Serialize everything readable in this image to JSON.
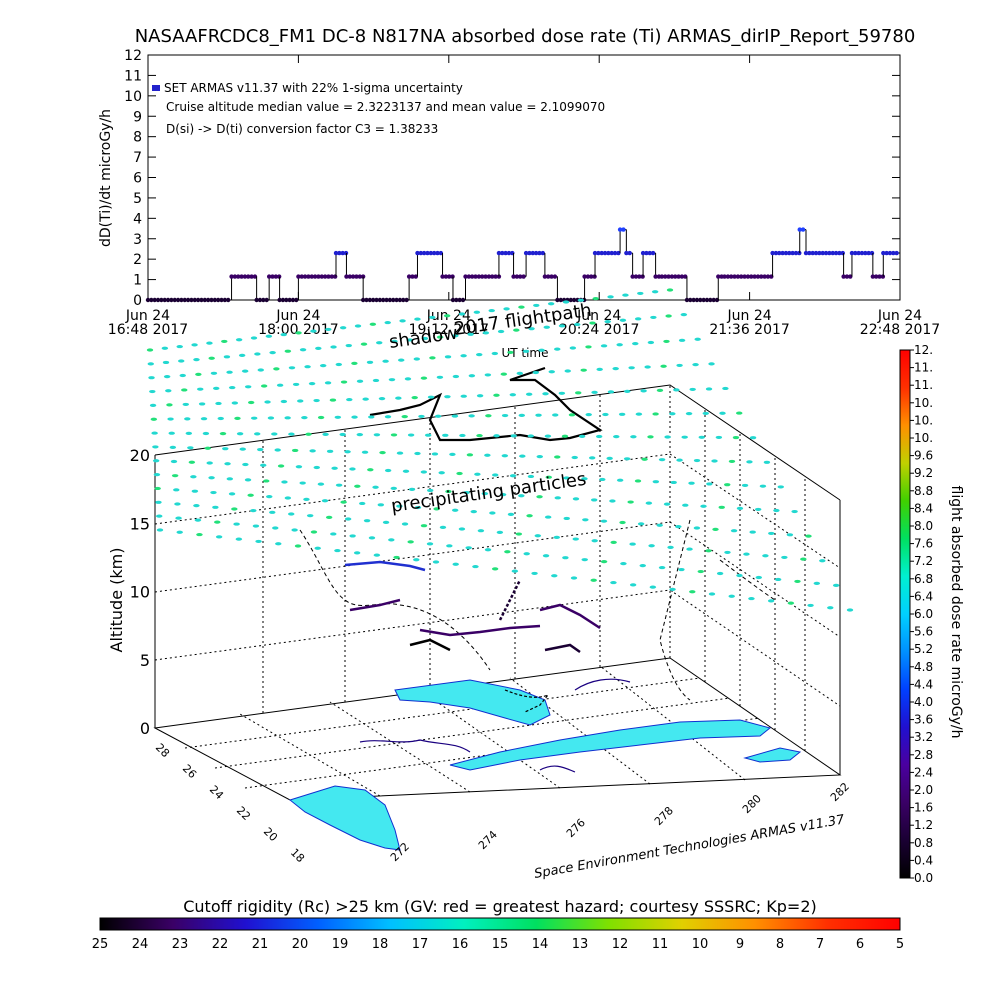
{
  "header": {
    "title": "NASAAFRCDC8_FM1 DC-8   N817NA absorbed dose rate (Ti) ARMAS_dirIP_Report_59780"
  },
  "top_plot": {
    "ylabel": "dD(Ti)/dt microGy/h",
    "xlabel": "UT time",
    "y_ticks": [
      "0",
      "1",
      "2",
      "3",
      "4",
      "5",
      "6",
      "7",
      "8",
      "9",
      "10",
      "11",
      "12"
    ],
    "x_ticks": [
      {
        "line1": "Jun 24",
        "line2": "16:48 2017"
      },
      {
        "line1": "Jun 24",
        "line2": "18:00 2017"
      },
      {
        "line1": "Jun 24",
        "line2": "19:12 2017"
      },
      {
        "line1": "Jun 24",
        "line2": "20:24 2017"
      },
      {
        "line1": "Jun 24",
        "line2": "21:36 2017"
      },
      {
        "line1": "Jun 24",
        "line2": "22:48 2017"
      }
    ],
    "legend": [
      "SET ARMAS v11.37 with 22% 1-sigma uncertainty",
      "Cruise altitude median value = 2.3223137 and mean value = 2.1099070",
      "D(si) -> D(ti) conversion factor C3 = 1.38233"
    ]
  },
  "chart_data": [
    {
      "type": "scatter",
      "title": "NASAAFRCDC8_FM1 DC-8   N817NA absorbed dose rate (Ti) ARMAS_dirIP_Report_59780",
      "xlabel": "UT time",
      "ylabel": "dD(Ti)/dt microGy/h",
      "x_unit": "minutes after Jun 24 16:48 UT",
      "xlim": [
        0,
        360
      ],
      "ylim": [
        0,
        12
      ],
      "segments": [
        {
          "x0": 0,
          "x1": 40,
          "y": 0.0
        },
        {
          "x0": 40,
          "x1": 52,
          "y": 1.15
        },
        {
          "x0": 52,
          "x1": 58,
          "y": 0.0
        },
        {
          "x0": 58,
          "x1": 63,
          "y": 1.15
        },
        {
          "x0": 63,
          "x1": 72,
          "y": 0.0
        },
        {
          "x0": 72,
          "x1": 90,
          "y": 1.15
        },
        {
          "x0": 90,
          "x1": 95,
          "y": 2.3
        },
        {
          "x0": 95,
          "x1": 103,
          "y": 1.15
        },
        {
          "x0": 103,
          "x1": 125,
          "y": 0.0
        },
        {
          "x0": 125,
          "x1": 129,
          "y": 1.15
        },
        {
          "x0": 129,
          "x1": 141,
          "y": 2.3
        },
        {
          "x0": 141,
          "x1": 146,
          "y": 1.15
        },
        {
          "x0": 146,
          "x1": 152,
          "y": 0.0
        },
        {
          "x0": 152,
          "x1": 168,
          "y": 1.15
        },
        {
          "x0": 168,
          "x1": 175,
          "y": 2.3
        },
        {
          "x0": 175,
          "x1": 181,
          "y": 1.15
        },
        {
          "x0": 181,
          "x1": 190,
          "y": 2.3
        },
        {
          "x0": 190,
          "x1": 196,
          "y": 1.15
        },
        {
          "x0": 196,
          "x1": 209,
          "y": 0.0
        },
        {
          "x0": 209,
          "x1": 214,
          "y": 1.15
        },
        {
          "x0": 214,
          "x1": 226,
          "y": 2.3
        },
        {
          "x0": 226,
          "x1": 229,
          "y": 3.45
        },
        {
          "x0": 229,
          "x1": 232,
          "y": 2.3
        },
        {
          "x0": 232,
          "x1": 237,
          "y": 1.15
        },
        {
          "x0": 237,
          "x1": 243,
          "y": 2.3
        },
        {
          "x0": 243,
          "x1": 246,
          "y": 1.15
        },
        {
          "x0": 246,
          "x1": 258,
          "y": 1.15
        },
        {
          "x0": 258,
          "x1": 273,
          "y": 0.0
        },
        {
          "x0": 273,
          "x1": 276,
          "y": 1.15
        },
        {
          "x0": 276,
          "x1": 299,
          "y": 1.15
        },
        {
          "x0": 299,
          "x1": 312,
          "y": 2.3
        },
        {
          "x0": 312,
          "x1": 315,
          "y": 3.45
        },
        {
          "x0": 315,
          "x1": 333,
          "y": 2.3
        },
        {
          "x0": 333,
          "x1": 337,
          "y": 1.15
        },
        {
          "x0": 337,
          "x1": 347,
          "y": 2.3
        },
        {
          "x0": 347,
          "x1": 352,
          "y": 1.15
        },
        {
          "x0": 352,
          "x1": 360,
          "y": 2.3
        }
      ]
    },
    {
      "type": "heatmap",
      "title": "precipitating particles",
      "labels": [
        "shadow",
        "2017 flightpath",
        "precipitating particles"
      ],
      "axis_z": {
        "label": "Altitude (km)",
        "ticks": [
          "0",
          "5",
          "10",
          "15",
          "20"
        ]
      },
      "axis_lat": {
        "ticks": [
          "18",
          "20",
          "22",
          "24",
          "26",
          "28"
        ]
      },
      "axis_lon": {
        "ticks": [
          "272",
          "274",
          "276",
          "278",
          "280",
          "282"
        ]
      },
      "credit": "Space Environment Technologies ARMAS v11.37"
    }
  ],
  "colorbar_right": {
    "label": "flight absorbed dose rate microGy/h",
    "ticks": [
      "0.0",
      "0.4",
      "0.8",
      "1.2",
      "1.6",
      "2.0",
      "2.4",
      "2.8",
      "3.2",
      "3.6",
      "4.0",
      "4.4",
      "4.8",
      "5.2",
      "5.6",
      "6.0",
      "6.4",
      "6.8",
      "7.2",
      "7.6",
      "8.0",
      "8.4",
      "8.8",
      "9.2",
      "9.6",
      "10.",
      "10.",
      "10.",
      "11.",
      "11.",
      "12."
    ],
    "colors": [
      "#000000",
      "#1a0033",
      "#3a0066",
      "#4a00a0",
      "#2010d0",
      "#0040ff",
      "#0090ff",
      "#00d0ff",
      "#00f0d0",
      "#00e060",
      "#40d000",
      "#c0d000",
      "#ff9000",
      "#ff3000",
      "#ff0000"
    ]
  },
  "colorbar_bottom": {
    "label": "Cutoff rigidity (Rc) >25 km (GV: red = greatest hazard; courtesy SSSRC; Kp=2)",
    "ticks": [
      "25",
      "24",
      "23",
      "22",
      "21",
      "20",
      "19",
      "18",
      "17",
      "16",
      "15",
      "14",
      "13",
      "12",
      "11",
      "10",
      "9",
      "8",
      "7",
      "6",
      "5"
    ],
    "colors": [
      "#000000",
      "#3a0066",
      "#2010d0",
      "#0060ff",
      "#00c0ff",
      "#00f0c0",
      "#00e060",
      "#80e000",
      "#e0d000",
      "#ff9000",
      "#ff3000",
      "#ff0000"
    ]
  }
}
